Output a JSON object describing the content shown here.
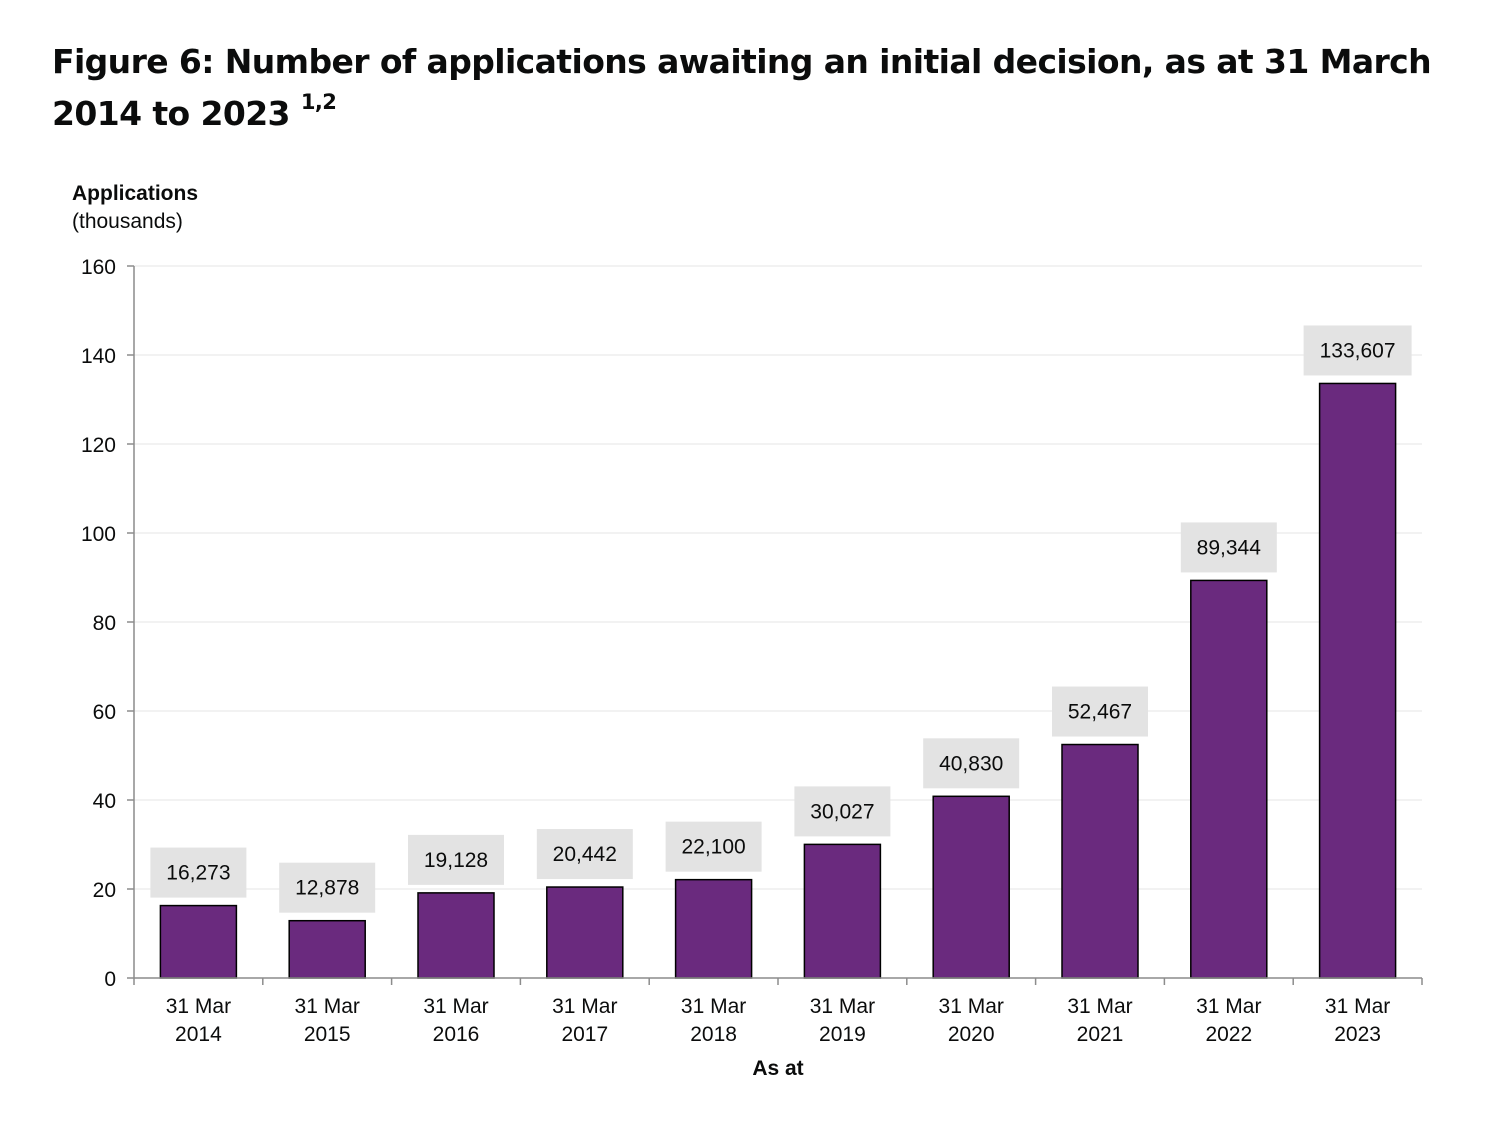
{
  "figure": {
    "title": "Figure 6: Number of applications awaiting an initial decision, as at 31 March 2014 to 2023",
    "title_footnote": "1,2"
  },
  "chart_data": {
    "type": "bar",
    "ylabel_line1": "Applications",
    "ylabel_line2": "(thousands)",
    "xlabel": "As at",
    "categories": [
      [
        "31 Mar",
        "2014"
      ],
      [
        "31 Mar",
        "2015"
      ],
      [
        "31 Mar",
        "2016"
      ],
      [
        "31 Mar",
        "2017"
      ],
      [
        "31 Mar",
        "2018"
      ],
      [
        "31 Mar",
        "2019"
      ],
      [
        "31 Mar",
        "2020"
      ],
      [
        "31 Mar",
        "2021"
      ],
      [
        "31 Mar",
        "2022"
      ],
      [
        "31 Mar",
        "2023"
      ]
    ],
    "values": [
      16.273,
      12.878,
      19.128,
      20.442,
      22.1,
      30.027,
      40.83,
      52.467,
      89.344,
      133.607
    ],
    "data_labels": [
      "16,273",
      "12,878",
      "19,128",
      "20,442",
      "22,100",
      "30,027",
      "40,830",
      "52,467",
      "89,344",
      "133,607"
    ],
    "yticks": [
      0,
      20,
      40,
      60,
      80,
      100,
      120,
      140,
      160
    ],
    "ylim": [
      0,
      160
    ],
    "grid": true,
    "legend": false,
    "colors": {
      "bar": "#6a2a7e",
      "bar_stroke": "#000000",
      "label_bg": "#e3e3e3",
      "grid": "#eeeeee",
      "axis": "#8c8c8c"
    }
  }
}
